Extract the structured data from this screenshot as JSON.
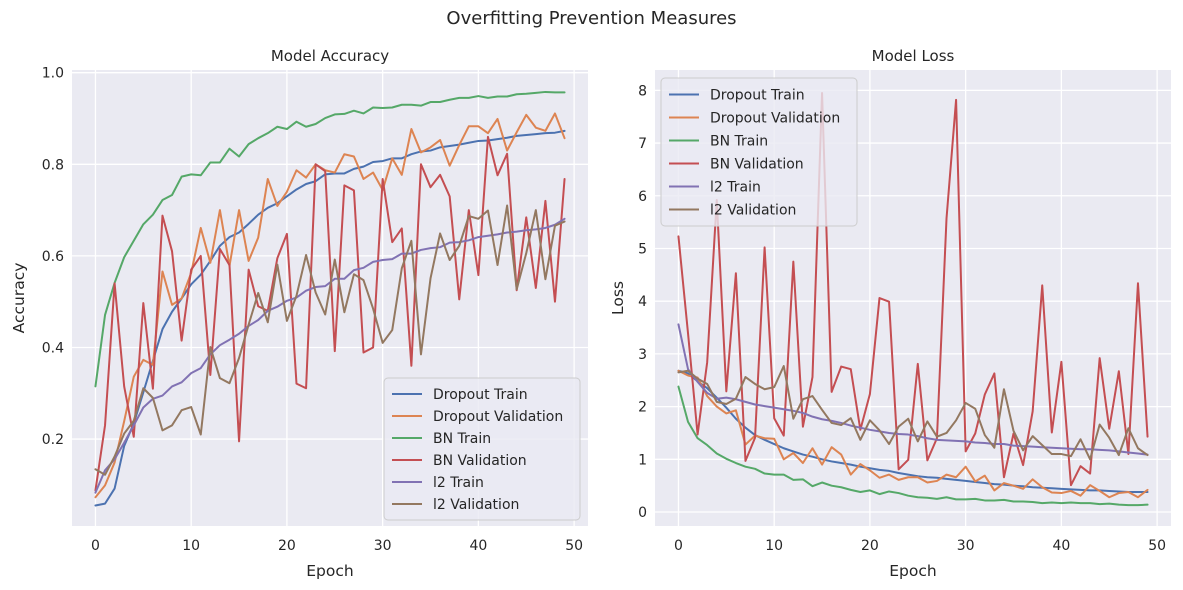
{
  "figure": {
    "title": "Overfitting Prevention Measures"
  },
  "chart_data": [
    {
      "type": "line",
      "title": "Model Accuracy",
      "xlabel": "Epoch",
      "ylabel": "Accuracy",
      "xlim": [
        -2.45,
        51.45
      ],
      "ylim": [
        0.0102,
        1.0059
      ],
      "xticks": [
        0,
        10,
        20,
        30,
        40,
        50
      ],
      "xtick_labels": [
        "0",
        "10",
        "20",
        "30",
        "40",
        "50"
      ],
      "yticks": [
        0.2,
        0.4,
        0.6,
        0.8,
        1.0
      ],
      "ytick_labels": [
        "0.2",
        "0.4",
        "0.6",
        "0.8",
        "1.0"
      ],
      "grid": true,
      "legend_placement": "lower-right",
      "x": [
        0,
        1,
        2,
        3,
        4,
        5,
        6,
        7,
        8,
        9,
        10,
        11,
        12,
        13,
        14,
        15,
        16,
        17,
        18,
        19,
        20,
        21,
        22,
        23,
        24,
        25,
        26,
        27,
        28,
        29,
        30,
        31,
        32,
        33,
        34,
        35,
        36,
        37,
        38,
        39,
        40,
        41,
        42,
        43,
        44,
        45,
        46,
        47,
        48,
        49
      ],
      "series": [
        {
          "name": "Dropout Train",
          "color": "#4c72b0",
          "values": [
            0.055,
            0.059,
            0.092,
            0.185,
            0.234,
            0.302,
            0.371,
            0.44,
            0.478,
            0.507,
            0.538,
            0.559,
            0.589,
            0.622,
            0.641,
            0.651,
            0.67,
            0.69,
            0.705,
            0.715,
            0.73,
            0.745,
            0.757,
            0.763,
            0.778,
            0.78,
            0.78,
            0.79,
            0.795,
            0.805,
            0.807,
            0.813,
            0.813,
            0.822,
            0.828,
            0.83,
            0.837,
            0.84,
            0.843,
            0.847,
            0.851,
            0.852,
            0.855,
            0.858,
            0.862,
            0.864,
            0.866,
            0.868,
            0.869,
            0.873
          ]
        },
        {
          "name": "Dropout Validation",
          "color": "#dd8452",
          "values": [
            0.073,
            0.099,
            0.149,
            0.239,
            0.336,
            0.373,
            0.362,
            0.566,
            0.493,
            0.507,
            0.563,
            0.661,
            0.585,
            0.7,
            0.578,
            0.7,
            0.589,
            0.64,
            0.768,
            0.709,
            0.74,
            0.787,
            0.771,
            0.8,
            0.787,
            0.782,
            0.822,
            0.817,
            0.768,
            0.782,
            0.744,
            0.813,
            0.777,
            0.877,
            0.826,
            0.837,
            0.853,
            0.797,
            0.842,
            0.883,
            0.883,
            0.868,
            0.899,
            0.83,
            0.87,
            0.908,
            0.88,
            0.873,
            0.911,
            0.857
          ]
        },
        {
          "name": "BN Train",
          "color": "#55a868",
          "values": [
            0.315,
            0.471,
            0.541,
            0.597,
            0.633,
            0.669,
            0.69,
            0.722,
            0.733,
            0.773,
            0.778,
            0.776,
            0.804,
            0.804,
            0.834,
            0.817,
            0.844,
            0.857,
            0.868,
            0.882,
            0.877,
            0.893,
            0.882,
            0.888,
            0.901,
            0.909,
            0.91,
            0.917,
            0.911,
            0.924,
            0.923,
            0.924,
            0.93,
            0.93,
            0.928,
            0.936,
            0.936,
            0.941,
            0.945,
            0.945,
            0.949,
            0.945,
            0.948,
            0.948,
            0.953,
            0.954,
            0.956,
            0.958,
            0.957,
            0.957
          ]
        },
        {
          "name": "BN Validation",
          "color": "#c44e52",
          "values": [
            0.088,
            0.23,
            0.54,
            0.315,
            0.205,
            0.497,
            0.31,
            0.688,
            0.61,
            0.415,
            0.57,
            0.6,
            0.34,
            0.615,
            0.58,
            0.195,
            0.57,
            0.49,
            0.48,
            0.595,
            0.648,
            0.321,
            0.311,
            0.8,
            0.785,
            0.392,
            0.754,
            0.743,
            0.389,
            0.4,
            0.768,
            0.63,
            0.66,
            0.36,
            0.8,
            0.75,
            0.777,
            0.73,
            0.505,
            0.7,
            0.558,
            0.86,
            0.776,
            0.823,
            0.525,
            0.684,
            0.53,
            0.72,
            0.5,
            0.768
          ]
        },
        {
          "name": "l2 Train",
          "color": "#8172b3",
          "values": [
            0.083,
            0.132,
            0.156,
            0.192,
            0.23,
            0.269,
            0.288,
            0.295,
            0.315,
            0.324,
            0.344,
            0.355,
            0.385,
            0.405,
            0.417,
            0.43,
            0.447,
            0.46,
            0.48,
            0.489,
            0.502,
            0.509,
            0.524,
            0.532,
            0.534,
            0.55,
            0.55,
            0.569,
            0.574,
            0.587,
            0.591,
            0.593,
            0.605,
            0.605,
            0.613,
            0.617,
            0.619,
            0.629,
            0.63,
            0.634,
            0.641,
            0.644,
            0.647,
            0.651,
            0.653,
            0.656,
            0.658,
            0.661,
            0.668,
            0.681
          ]
        },
        {
          "name": "l2 Validation",
          "color": "#937860",
          "values": [
            0.134,
            0.122,
            0.162,
            0.212,
            0.24,
            0.311,
            0.29,
            0.219,
            0.23,
            0.263,
            0.27,
            0.21,
            0.401,
            0.333,
            0.322,
            0.377,
            0.45,
            0.519,
            0.455,
            0.581,
            0.458,
            0.513,
            0.602,
            0.52,
            0.472,
            0.592,
            0.477,
            0.56,
            0.547,
            0.485,
            0.41,
            0.438,
            0.573,
            0.633,
            0.385,
            0.551,
            0.649,
            0.591,
            0.622,
            0.687,
            0.681,
            0.699,
            0.58,
            0.71,
            0.527,
            0.606,
            0.7,
            0.549,
            0.666,
            0.675
          ]
        }
      ]
    },
    {
      "type": "line",
      "title": "Model Loss",
      "xlabel": "Epoch",
      "ylabel": "Loss",
      "xlim": [
        -2.45,
        51.45
      ],
      "ylim": [
        -0.265,
        8.386
      ],
      "xticks": [
        0,
        10,
        20,
        30,
        40,
        50
      ],
      "xtick_labels": [
        "0",
        "10",
        "20",
        "30",
        "40",
        "50"
      ],
      "yticks": [
        0,
        1,
        2,
        3,
        4,
        5,
        6,
        7,
        8
      ],
      "ytick_labels": [
        "0",
        "1",
        "2",
        "3",
        "4",
        "5",
        "6",
        "7",
        "8"
      ],
      "grid": true,
      "legend_placement": "upper-left",
      "x": [
        0,
        1,
        2,
        3,
        4,
        5,
        6,
        7,
        8,
        9,
        10,
        11,
        12,
        13,
        14,
        15,
        16,
        17,
        18,
        19,
        20,
        21,
        22,
        23,
        24,
        25,
        26,
        27,
        28,
        29,
        30,
        31,
        32,
        33,
        34,
        35,
        36,
        37,
        38,
        39,
        40,
        41,
        42,
        43,
        44,
        45,
        46,
        47,
        48,
        49
      ],
      "series": [
        {
          "name": "Dropout Train",
          "color": "#4c72b0",
          "values": [
            2.68,
            2.63,
            2.48,
            2.35,
            2.17,
            1.98,
            1.77,
            1.6,
            1.46,
            1.37,
            1.29,
            1.21,
            1.15,
            1.09,
            1.05,
            1.0,
            0.96,
            0.93,
            0.9,
            0.86,
            0.83,
            0.8,
            0.78,
            0.74,
            0.71,
            0.68,
            0.66,
            0.65,
            0.63,
            0.61,
            0.59,
            0.57,
            0.55,
            0.53,
            0.52,
            0.5,
            0.49,
            0.47,
            0.46,
            0.45,
            0.44,
            0.43,
            0.42,
            0.41,
            0.41,
            0.4,
            0.39,
            0.38,
            0.38,
            0.38
          ]
        },
        {
          "name": "Dropout Validation",
          "color": "#dd8452",
          "values": [
            2.68,
            2.59,
            2.55,
            2.2,
            2.0,
            1.87,
            1.93,
            1.28,
            1.45,
            1.4,
            1.39,
            1.0,
            1.12,
            0.93,
            1.21,
            0.9,
            1.23,
            1.09,
            0.71,
            0.91,
            0.79,
            0.65,
            0.71,
            0.61,
            0.66,
            0.66,
            0.56,
            0.59,
            0.71,
            0.66,
            0.86,
            0.58,
            0.69,
            0.41,
            0.55,
            0.5,
            0.44,
            0.62,
            0.47,
            0.37,
            0.36,
            0.4,
            0.31,
            0.51,
            0.4,
            0.28,
            0.36,
            0.38,
            0.28,
            0.42
          ]
        },
        {
          "name": "BN Train",
          "color": "#55a868",
          "values": [
            2.38,
            1.71,
            1.4,
            1.27,
            1.11,
            1.01,
            0.93,
            0.86,
            0.82,
            0.73,
            0.71,
            0.71,
            0.61,
            0.62,
            0.49,
            0.56,
            0.5,
            0.47,
            0.42,
            0.38,
            0.41,
            0.34,
            0.39,
            0.36,
            0.31,
            0.28,
            0.27,
            0.25,
            0.28,
            0.24,
            0.24,
            0.25,
            0.22,
            0.22,
            0.23,
            0.2,
            0.2,
            0.19,
            0.17,
            0.18,
            0.17,
            0.18,
            0.17,
            0.17,
            0.15,
            0.16,
            0.14,
            0.13,
            0.13,
            0.14
          ]
        },
        {
          "name": "BN Validation",
          "color": "#c44e52",
          "values": [
            5.23,
            3.39,
            1.47,
            2.84,
            5.92,
            2.29,
            4.53,
            0.97,
            1.41,
            5.02,
            1.78,
            1.45,
            4.75,
            1.62,
            2.56,
            7.95,
            2.28,
            2.76,
            2.71,
            1.56,
            2.24,
            4.06,
            3.99,
            0.81,
            0.99,
            2.81,
            0.98,
            1.4,
            5.57,
            7.82,
            1.15,
            1.49,
            2.23,
            2.63,
            0.66,
            1.49,
            0.89,
            1.91,
            4.3,
            1.51,
            2.85,
            0.51,
            0.87,
            0.73,
            2.92,
            1.58,
            2.67,
            1.1,
            4.34,
            1.43
          ]
        },
        {
          "name": "l2 Train",
          "color": "#8172b3",
          "values": [
            3.56,
            2.71,
            2.47,
            2.26,
            2.15,
            2.17,
            2.14,
            2.09,
            2.04,
            2.01,
            1.98,
            1.95,
            1.92,
            1.88,
            1.81,
            1.76,
            1.73,
            1.69,
            1.64,
            1.6,
            1.56,
            1.53,
            1.5,
            1.48,
            1.47,
            1.44,
            1.4,
            1.37,
            1.36,
            1.35,
            1.34,
            1.32,
            1.31,
            1.29,
            1.29,
            1.26,
            1.25,
            1.24,
            1.23,
            1.22,
            1.21,
            1.2,
            1.19,
            1.19,
            1.18,
            1.17,
            1.15,
            1.13,
            1.11,
            1.09
          ]
        },
        {
          "name": "l2 Validation",
          "color": "#937860",
          "values": [
            2.65,
            2.68,
            2.53,
            2.43,
            2.09,
            2.05,
            2.15,
            2.56,
            2.43,
            2.33,
            2.37,
            2.77,
            1.77,
            2.14,
            2.2,
            1.94,
            1.69,
            1.65,
            1.78,
            1.37,
            1.74,
            1.55,
            1.29,
            1.62,
            1.77,
            1.34,
            1.72,
            1.43,
            1.5,
            1.74,
            2.07,
            1.96,
            1.46,
            1.22,
            2.33,
            1.54,
            1.17,
            1.44,
            1.27,
            1.1,
            1.1,
            1.06,
            1.38,
            1.0,
            1.66,
            1.41,
            1.08,
            1.59,
            1.21,
            1.08
          ]
        }
      ]
    }
  ]
}
